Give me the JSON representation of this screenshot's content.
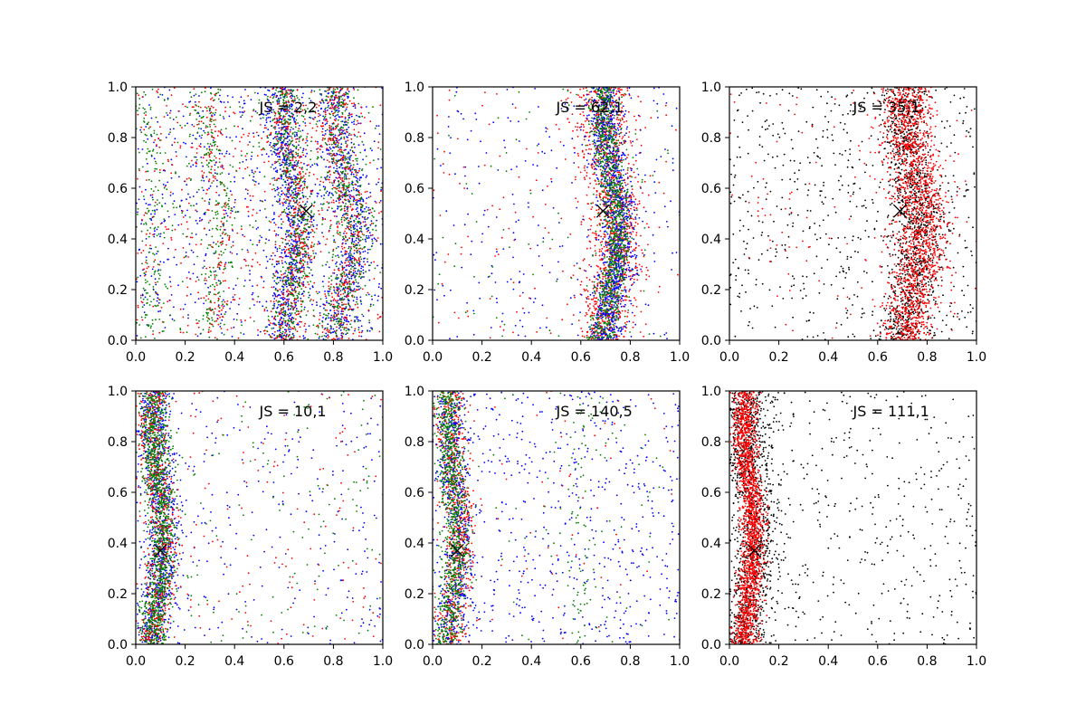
{
  "chart_data": [
    {
      "type": "scatter",
      "annotation": "JS = 2,2",
      "xlim": [
        0,
        1
      ],
      "ylim": [
        0,
        1
      ],
      "xticks": [
        "0.0",
        "0.2",
        "0.4",
        "0.6",
        "0.8",
        "1.0"
      ],
      "yticks": [
        "0.0",
        "0.2",
        "0.4",
        "0.6",
        "0.8",
        "1.0"
      ],
      "marker": {
        "x": 0.69,
        "y": 0.51,
        "symbol": "x",
        "color": "#000000"
      },
      "series": [
        {
          "color": "#0000ff",
          "distribution": [
            {
              "center_x": 0.62,
              "center_y": 0.5,
              "width": 0.035,
              "curve": 0.03,
              "n": 700
            },
            {
              "center_x": 0.85,
              "center_y": 0.5,
              "width": 0.04,
              "curve": 0.04,
              "n": 600
            },
            {
              "uniform": true,
              "n": 700
            }
          ]
        },
        {
          "color": "#ff0000",
          "distribution": [
            {
              "center_x": 0.33,
              "center_y": 0.5,
              "width": 0.03,
              "curve": 0.03,
              "n": 150
            },
            {
              "center_x": 0.63,
              "center_y": 0.5,
              "width": 0.035,
              "curve": 0.03,
              "n": 450
            },
            {
              "center_x": 0.84,
              "center_y": 0.5,
              "width": 0.04,
              "curve": 0.04,
              "n": 450
            },
            {
              "uniform": true,
              "n": 500
            }
          ]
        },
        {
          "color": "#008000",
          "distribution": [
            {
              "center_x": 0.06,
              "center_y": 0.5,
              "width": 0.03,
              "curve": 0.02,
              "n": 150
            },
            {
              "center_x": 0.32,
              "center_y": 0.5,
              "width": 0.03,
              "curve": 0.03,
              "n": 200
            },
            {
              "center_x": 0.63,
              "center_y": 0.5,
              "width": 0.035,
              "curve": 0.03,
              "n": 500
            },
            {
              "center_x": 0.84,
              "center_y": 0.5,
              "width": 0.04,
              "curve": 0.04,
              "n": 450
            },
            {
              "uniform": true,
              "n": 350
            }
          ]
        }
      ]
    },
    {
      "type": "scatter",
      "annotation": "JS = 62,1",
      "xlim": [
        0,
        1
      ],
      "ylim": [
        0,
        1
      ],
      "xticks": [
        "0.0",
        "0.2",
        "0.4",
        "0.6",
        "0.8",
        "1.0"
      ],
      "yticks": [
        "0.0",
        "0.2",
        "0.4",
        "0.6",
        "0.8",
        "1.0"
      ],
      "marker": {
        "x": 0.69,
        "y": 0.51,
        "symbol": "x",
        "color": "#000000"
      },
      "series": [
        {
          "color": "#ff0000",
          "distribution": [
            {
              "center_x": 0.72,
              "center_y": 0.5,
              "width": 0.055,
              "curve": 0.03,
              "n": 1300
            },
            {
              "uniform": true,
              "n": 150
            }
          ]
        },
        {
          "color": "#0000ff",
          "distribution": [
            {
              "center_x": 0.73,
              "center_y": 0.5,
              "width": 0.035,
              "curve": 0.03,
              "n": 1100
            },
            {
              "uniform": true,
              "n": 250
            }
          ]
        },
        {
          "color": "#008000",
          "distribution": [
            {
              "center_x": 0.72,
              "center_y": 0.5,
              "width": 0.03,
              "curve": 0.03,
              "n": 1000
            },
            {
              "uniform": true,
              "n": 80
            }
          ]
        }
      ]
    },
    {
      "type": "scatter",
      "annotation": "JS = 35,1",
      "xlim": [
        0,
        1
      ],
      "ylim": [
        0,
        1
      ],
      "xticks": [
        "0.0",
        "0.2",
        "0.4",
        "0.6",
        "0.8",
        "1.0"
      ],
      "yticks": [
        "0.0",
        "0.2",
        "0.4",
        "0.6",
        "0.8",
        "1.0"
      ],
      "marker": {
        "x": 0.69,
        "y": 0.51,
        "symbol": "x",
        "color": "#000000"
      },
      "series": [
        {
          "color": "#000000",
          "distribution": [
            {
              "center_x": 0.74,
              "center_y": 0.5,
              "width": 0.045,
              "curve": 0.03,
              "n": 1100
            },
            {
              "uniform": true,
              "n": 600
            }
          ]
        },
        {
          "color": "#ff0000",
          "distribution": [
            {
              "center_x": 0.75,
              "center_y": 0.5,
              "width": 0.055,
              "curve": 0.03,
              "n": 1700
            },
            {
              "uniform": true,
              "n": 120
            }
          ]
        }
      ]
    },
    {
      "type": "scatter",
      "annotation": "JS = 10,1",
      "xlim": [
        0,
        1
      ],
      "ylim": [
        0,
        1
      ],
      "xticks": [
        "0.0",
        "0.2",
        "0.4",
        "0.6",
        "0.8",
        "1.0"
      ],
      "yticks": [
        "0.0",
        "0.2",
        "0.4",
        "0.6",
        "0.8",
        "1.0"
      ],
      "marker": {
        "x": 0.1,
        "y": 0.37,
        "symbol": "x",
        "color": "#000000"
      },
      "series": [
        {
          "color": "#0000ff",
          "distribution": [
            {
              "center_x": 0.09,
              "center_y": 0.5,
              "width": 0.035,
              "curve": 0.02,
              "n": 900
            },
            {
              "uniform": true,
              "n": 300
            }
          ]
        },
        {
          "color": "#ff0000",
          "distribution": [
            {
              "center_x": 0.09,
              "center_y": 0.5,
              "width": 0.03,
              "curve": 0.02,
              "n": 700
            },
            {
              "uniform": true,
              "n": 150
            }
          ]
        },
        {
          "color": "#008000",
          "distribution": [
            {
              "center_x": 0.09,
              "center_y": 0.5,
              "width": 0.03,
              "curve": 0.02,
              "n": 1100
            },
            {
              "uniform": true,
              "n": 150
            }
          ]
        }
      ]
    },
    {
      "type": "scatter",
      "annotation": "JS = 140,5",
      "xlim": [
        0,
        1
      ],
      "ylim": [
        0,
        1
      ],
      "xticks": [
        "0.0",
        "0.2",
        "0.4",
        "0.6",
        "0.8",
        "1.0"
      ],
      "yticks": [
        "0.0",
        "0.2",
        "0.4",
        "0.6",
        "0.8",
        "1.0"
      ],
      "marker": {
        "x": 0.1,
        "y": 0.37,
        "symbol": "x",
        "color": "#000000"
      },
      "series": [
        {
          "color": "#ff0000",
          "distribution": [
            {
              "center_x": 0.09,
              "center_y": 0.5,
              "width": 0.03,
              "curve": 0.02,
              "n": 800
            },
            {
              "uniform": true,
              "n": 60
            }
          ]
        },
        {
          "color": "#0000ff",
          "distribution": [
            {
              "center_x": 0.09,
              "center_y": 0.5,
              "width": 0.035,
              "curve": 0.02,
              "n": 500
            },
            {
              "uniform": true,
              "n": 600
            }
          ]
        },
        {
          "color": "#008000",
          "distribution": [
            {
              "center_x": 0.08,
              "center_y": 0.5,
              "width": 0.028,
              "curve": 0.02,
              "n": 900
            },
            {
              "center_x": 0.6,
              "center_y": 0.5,
              "width": 0.04,
              "curve": 0.0,
              "n": 80
            },
            {
              "uniform": true,
              "n": 60
            }
          ]
        }
      ]
    },
    {
      "type": "scatter",
      "annotation": "JS = 111,1",
      "xlim": [
        0,
        1
      ],
      "ylim": [
        0,
        1
      ],
      "xticks": [
        "0.0",
        "0.2",
        "0.4",
        "0.6",
        "0.8",
        "1.0"
      ],
      "yticks": [
        "0.0",
        "0.2",
        "0.4",
        "0.6",
        "0.8",
        "1.0"
      ],
      "marker": {
        "x": 0.1,
        "y": 0.37,
        "symbol": "x",
        "color": "#000000"
      },
      "series": [
        {
          "color": "#000000",
          "distribution": [
            {
              "center_x": 0.09,
              "center_y": 0.5,
              "width": 0.05,
              "curve": 0.02,
              "n": 1200
            },
            {
              "uniform": true,
              "n": 450
            }
          ]
        },
        {
          "color": "#ff0000",
          "distribution": [
            {
              "center_x": 0.08,
              "center_y": 0.5,
              "width": 0.025,
              "curve": 0.02,
              "n": 1800
            }
          ]
        }
      ]
    }
  ]
}
